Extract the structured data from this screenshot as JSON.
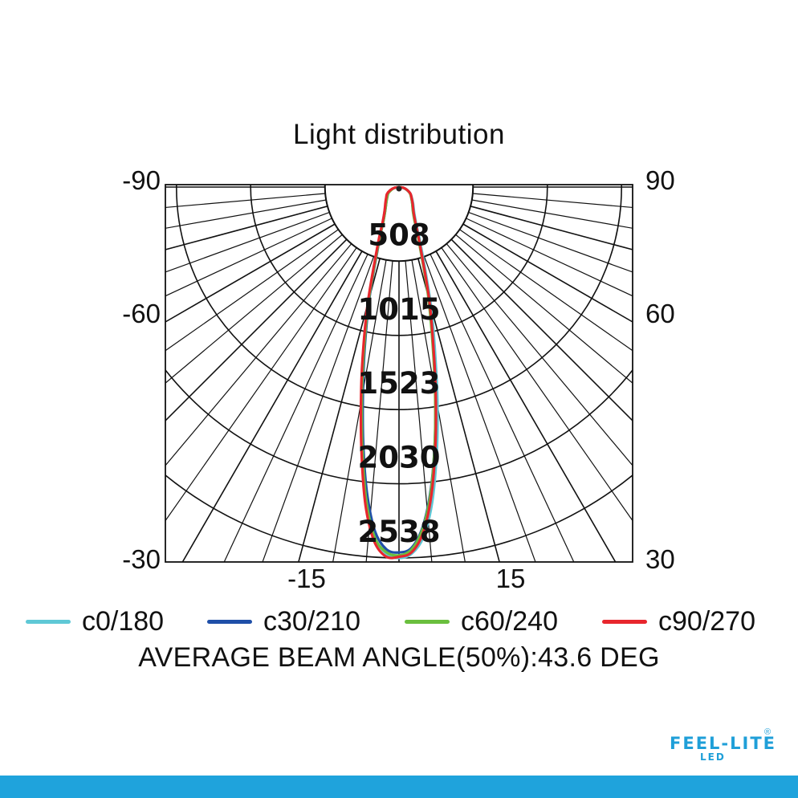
{
  "chart_data": {
    "type": "polar",
    "title": "Light distribution",
    "radial_ticks": [
      "508",
      "1015",
      "1523",
      "2030",
      "2538"
    ],
    "radial_max": 2538,
    "left_angle_labels": [
      "-90",
      "-60",
      "-30"
    ],
    "right_angle_labels": [
      "90",
      "60",
      "30"
    ],
    "bottom_angle_labels": [
      "-15",
      "15"
    ],
    "angle_range": [
      -90,
      90
    ],
    "grid": true,
    "legend_position": "bottom",
    "series": [
      {
        "name": "c0/180",
        "color": "#5fc8d6",
        "angles": [
          -90,
          -80,
          -70,
          -60,
          -50,
          -40,
          -30,
          -25,
          -20,
          -15,
          -12,
          -10,
          -8,
          -6,
          -4,
          -2,
          0,
          2,
          4,
          6,
          8,
          10,
          12,
          15,
          20,
          25,
          30,
          40,
          50,
          60,
          70,
          80,
          90
        ],
        "values": [
          0,
          30,
          60,
          90,
          110,
          140,
          200,
          260,
          420,
          800,
          1150,
          1450,
          1800,
          2150,
          2400,
          2510,
          2538,
          2510,
          2400,
          2170,
          1850,
          1520,
          1200,
          850,
          450,
          280,
          210,
          150,
          115,
          90,
          60,
          30,
          0
        ]
      },
      {
        "name": "c30/210",
        "color": "#1f4fa8",
        "angles": [
          -90,
          -80,
          -70,
          -60,
          -50,
          -40,
          -30,
          -25,
          -20,
          -15,
          -12,
          -10,
          -8,
          -6,
          -4,
          -2,
          0,
          2,
          4,
          6,
          8,
          10,
          12,
          15,
          20,
          25,
          30,
          40,
          50,
          60,
          70,
          80,
          90
        ],
        "values": [
          0,
          30,
          60,
          85,
          105,
          135,
          190,
          250,
          400,
          780,
          1130,
          1420,
          1760,
          2100,
          2360,
          2480,
          2500,
          2470,
          2330,
          2080,
          1760,
          1430,
          1130,
          790,
          410,
          255,
          195,
          140,
          110,
          88,
          58,
          30,
          0
        ]
      },
      {
        "name": "c60/240",
        "color": "#6abf3e",
        "angles": [
          -90,
          -80,
          -70,
          -60,
          -50,
          -40,
          -30,
          -25,
          -20,
          -15,
          -12,
          -10,
          -8,
          -6,
          -4,
          -2,
          0,
          2,
          4,
          6,
          8,
          10,
          12,
          15,
          20,
          25,
          30,
          40,
          50,
          60,
          70,
          80,
          90
        ],
        "values": [
          0,
          30,
          55,
          85,
          105,
          135,
          190,
          250,
          410,
          800,
          1160,
          1460,
          1800,
          2150,
          2400,
          2500,
          2520,
          2480,
          2340,
          2090,
          1760,
          1420,
          1110,
          770,
          400,
          250,
          190,
          140,
          108,
          86,
          57,
          30,
          0
        ]
      },
      {
        "name": "c90/270",
        "color": "#e8262d",
        "angles": [
          -90,
          -80,
          -70,
          -60,
          -50,
          -40,
          -30,
          -25,
          -20,
          -15,
          -12,
          -10,
          -8,
          -6,
          -4,
          -2,
          0,
          2,
          4,
          6,
          8,
          10,
          12,
          15,
          20,
          25,
          30,
          40,
          50,
          60,
          70,
          80,
          90
        ],
        "values": [
          0,
          35,
          65,
          95,
          115,
          145,
          200,
          265,
          430,
          830,
          1200,
          1500,
          1840,
          2190,
          2430,
          2530,
          2530,
          2500,
          2370,
          2120,
          1790,
          1450,
          1140,
          800,
          420,
          265,
          200,
          145,
          112,
          90,
          60,
          32,
          0
        ]
      }
    ]
  },
  "note": "AVERAGE BEAM ANGLE(50%):43.6  DEG",
  "logo": {
    "main": "FEEL-LITE",
    "sub": "LED",
    "mark": "®"
  },
  "colors": {
    "grid": "#111111",
    "brand": "#1fa3dc"
  }
}
